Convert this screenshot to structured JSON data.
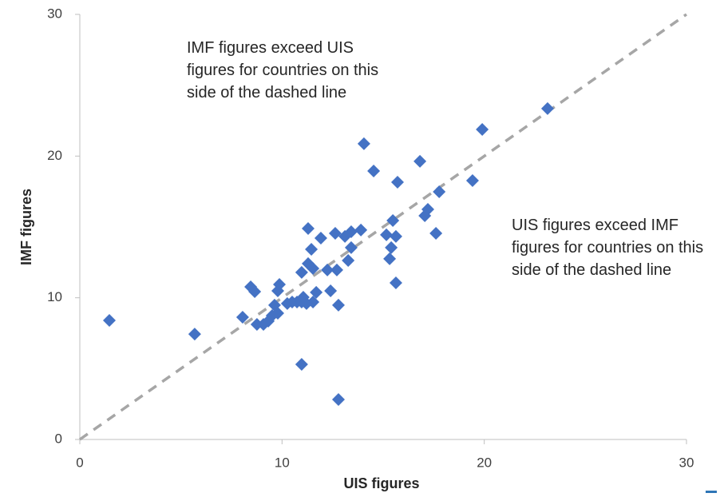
{
  "chart_data": {
    "type": "scatter",
    "xlabel": "UIS figures",
    "ylabel": "IMF figures",
    "color": "#4472c4",
    "grid": false,
    "xlim": [
      0,
      30
    ],
    "ylim": [
      0,
      30
    ],
    "xticks": [
      0,
      10,
      20,
      30
    ],
    "yticks": [
      0,
      10,
      20,
      30
    ],
    "annotations": [
      "IMF figures exceed UIS figures for countries on this side of the dashed line",
      "UIS figures exceed IMF figures for countries on this side of the dashed line"
    ],
    "x": [
      1.46,
      5.68,
      8.05,
      8.45,
      8.65,
      8.76,
      9.08,
      9.32,
      9.51,
      9.63,
      9.79,
      9.87,
      9.79,
      10.26,
      10.5,
      10.74,
      10.97,
      11.05,
      11.21,
      11.53,
      11.69,
      10.97,
      11.29,
      11.53,
      11.45,
      11.29,
      11.92,
      12.24,
      12.4,
      12.63,
      12.71,
      12.79,
      10.97,
      12.79,
      13.11,
      13.27,
      13.42,
      13.42,
      13.9,
      14.05,
      14.53,
      15.16,
      15.32,
      15.4,
      15.48,
      15.63,
      15.63,
      15.71,
      16.82,
      17.06,
      17.21,
      17.61,
      17.77,
      19.42,
      19.9,
      23.13
    ],
    "y": [
      8.4,
      7.44,
      8.63,
      10.77,
      10.43,
      8.12,
      8.12,
      8.35,
      8.74,
      9.48,
      10.49,
      10.94,
      8.91,
      9.59,
      9.7,
      9.7,
      9.7,
      10.04,
      9.59,
      9.7,
      10.38,
      11.79,
      12.41,
      12.07,
      13.42,
      14.89,
      14.21,
      11.96,
      10.49,
      14.55,
      11.96,
      9.48,
      5.3,
      2.82,
      14.33,
      12.63,
      13.54,
      14.66,
      14.78,
      20.87,
      18.95,
      14.44,
      12.75,
      13.54,
      15.45,
      14.33,
      11.05,
      18.16,
      19.63,
      15.79,
      16.24,
      14.55,
      17.48,
      18.27,
      21.88,
      23.35
    ]
  }
}
